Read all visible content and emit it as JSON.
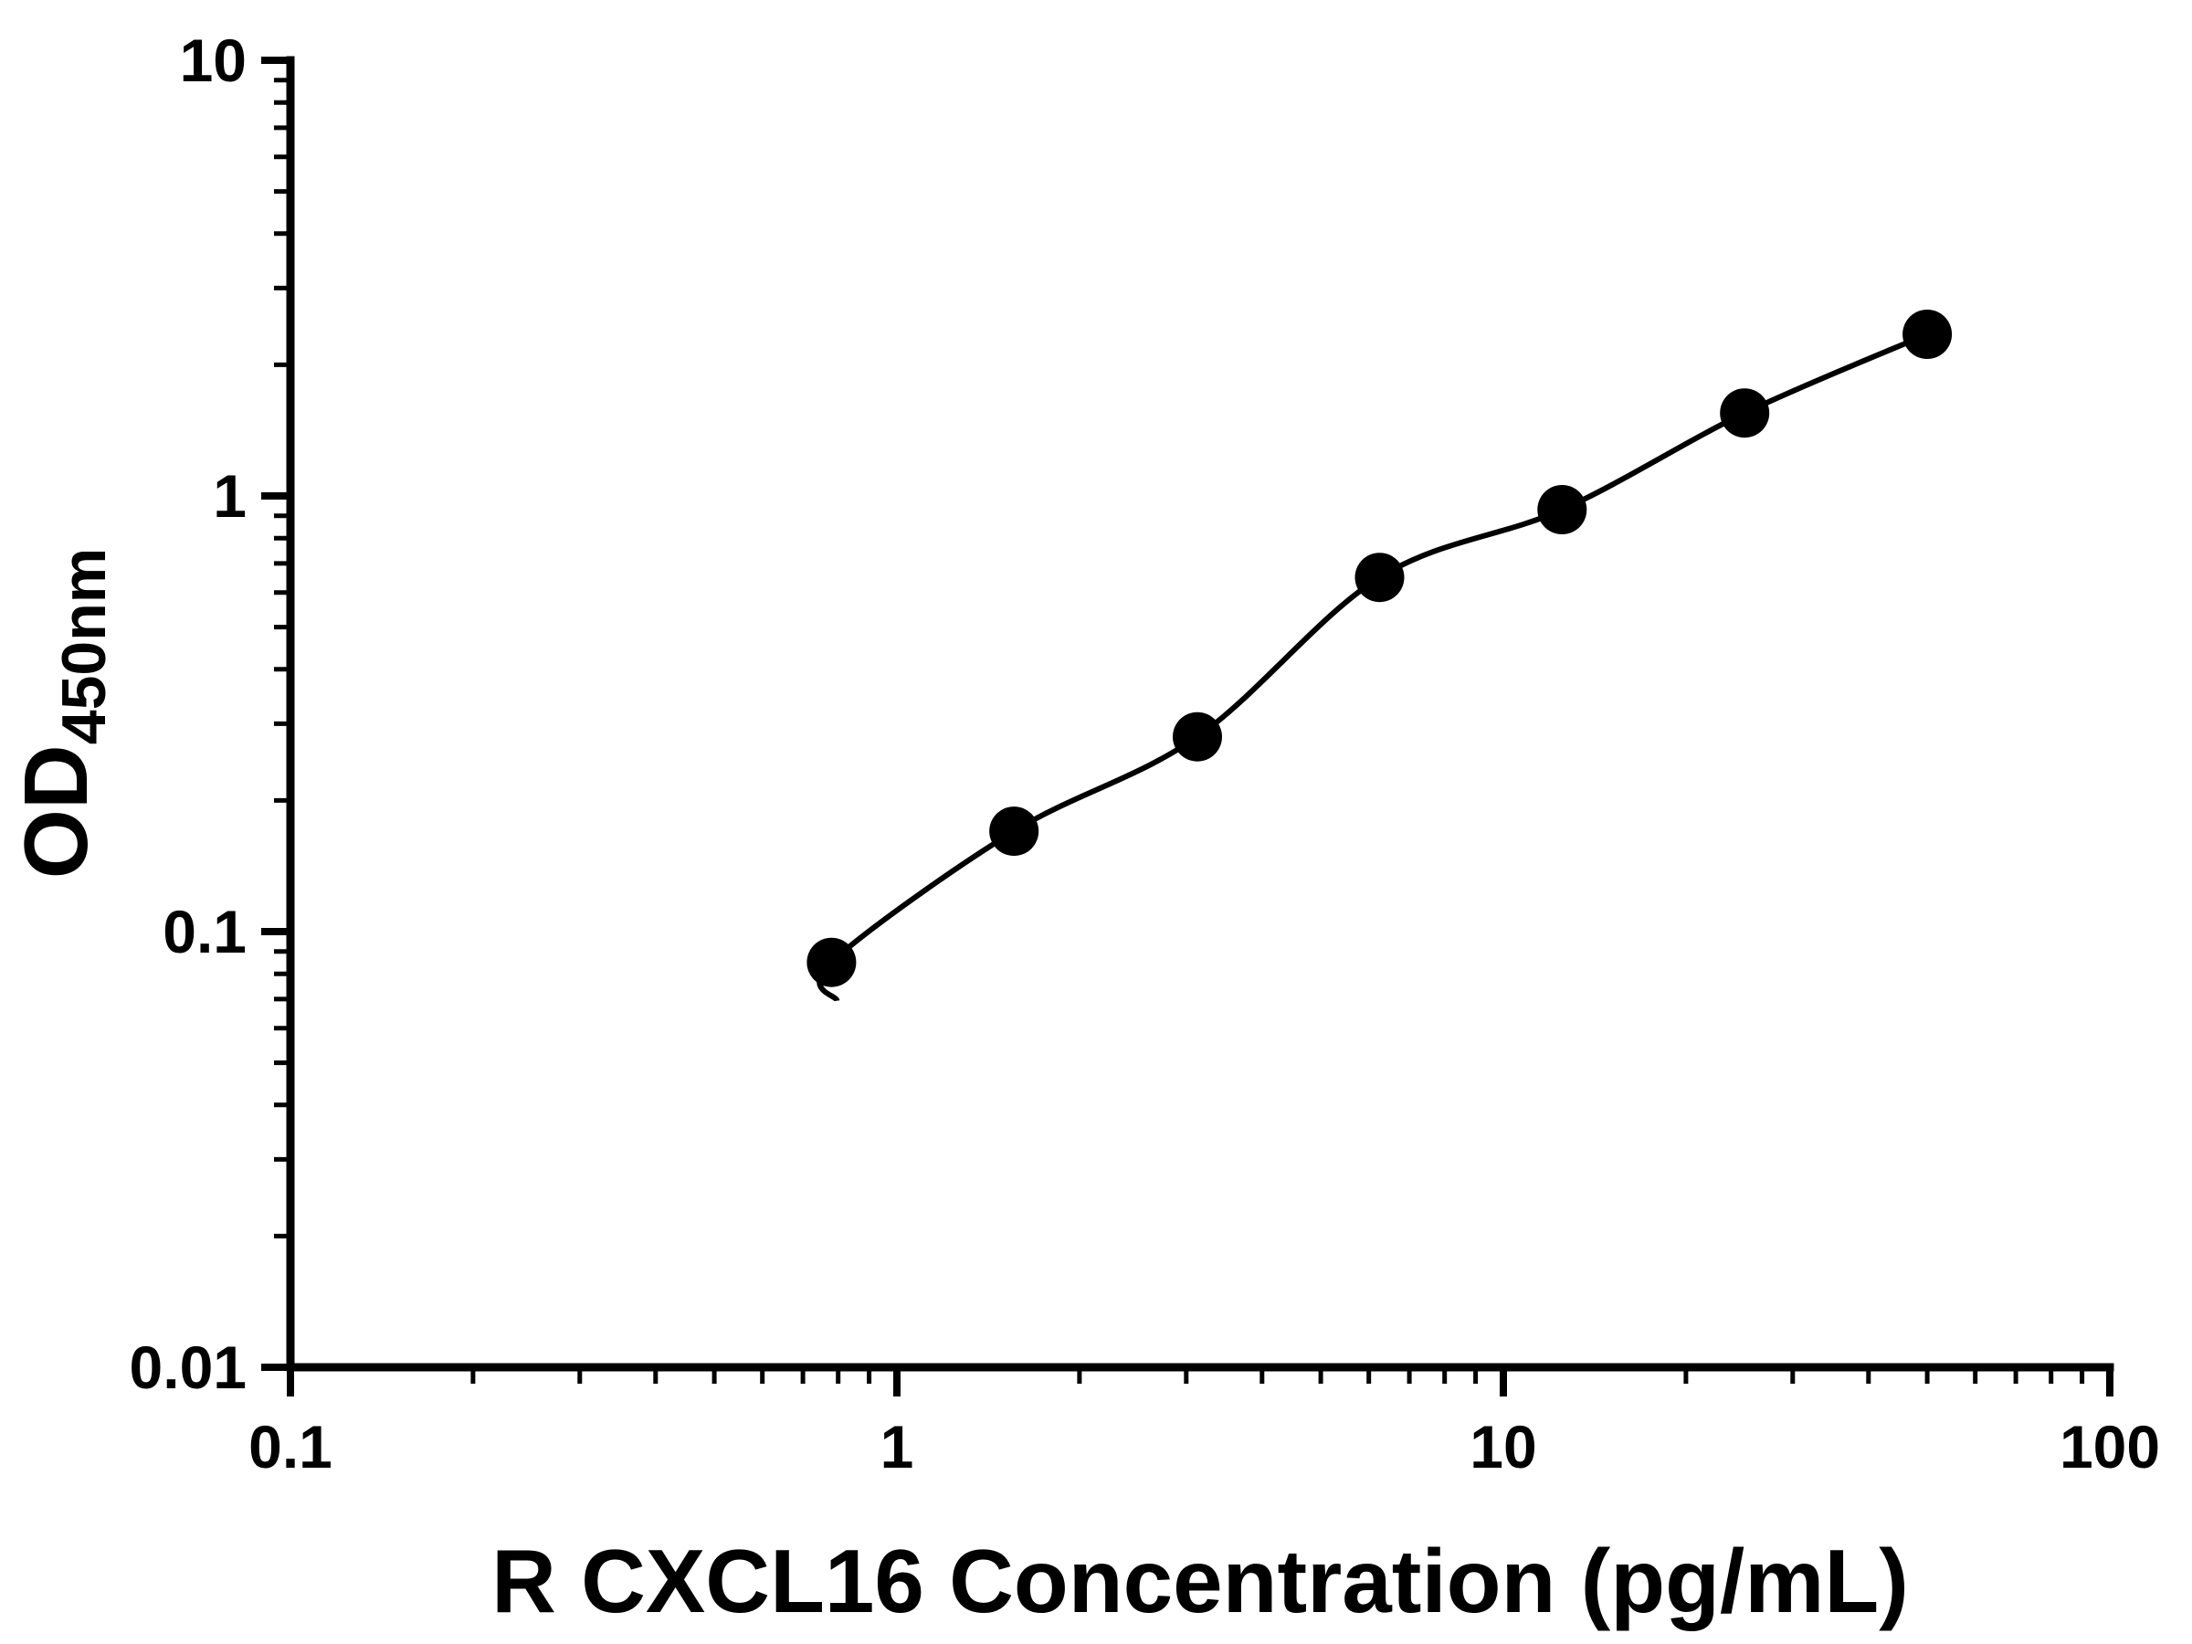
{
  "chart_data": {
    "type": "scatter",
    "title": "",
    "xlabel": "R CXCL16 Concentration (pg/mL)",
    "ylabel_main": "OD",
    "ylabel_sub": "450nm",
    "x_scale": "log",
    "y_scale": "log",
    "xlim": [
      0.1,
      100
    ],
    "ylim": [
      0.01,
      10
    ],
    "x_ticks": [
      "0.1",
      "1",
      "10",
      "100"
    ],
    "y_ticks": [
      "0.01",
      "0.1",
      "1",
      "10"
    ],
    "grid": false,
    "legend": false,
    "has_fit_curve": true,
    "marker_color": "#000000",
    "line_color": "#000000",
    "axis_color": "#000000",
    "background_color": "#ffffff",
    "points": [
      {
        "x": 0.78,
        "y": 0.085
      },
      {
        "x": 1.56,
        "y": 0.17
      },
      {
        "x": 3.13,
        "y": 0.28
      },
      {
        "x": 6.25,
        "y": 0.65
      },
      {
        "x": 12.5,
        "y": 0.93
      },
      {
        "x": 25,
        "y": 1.55
      },
      {
        "x": 50,
        "y": 2.35
      }
    ]
  }
}
